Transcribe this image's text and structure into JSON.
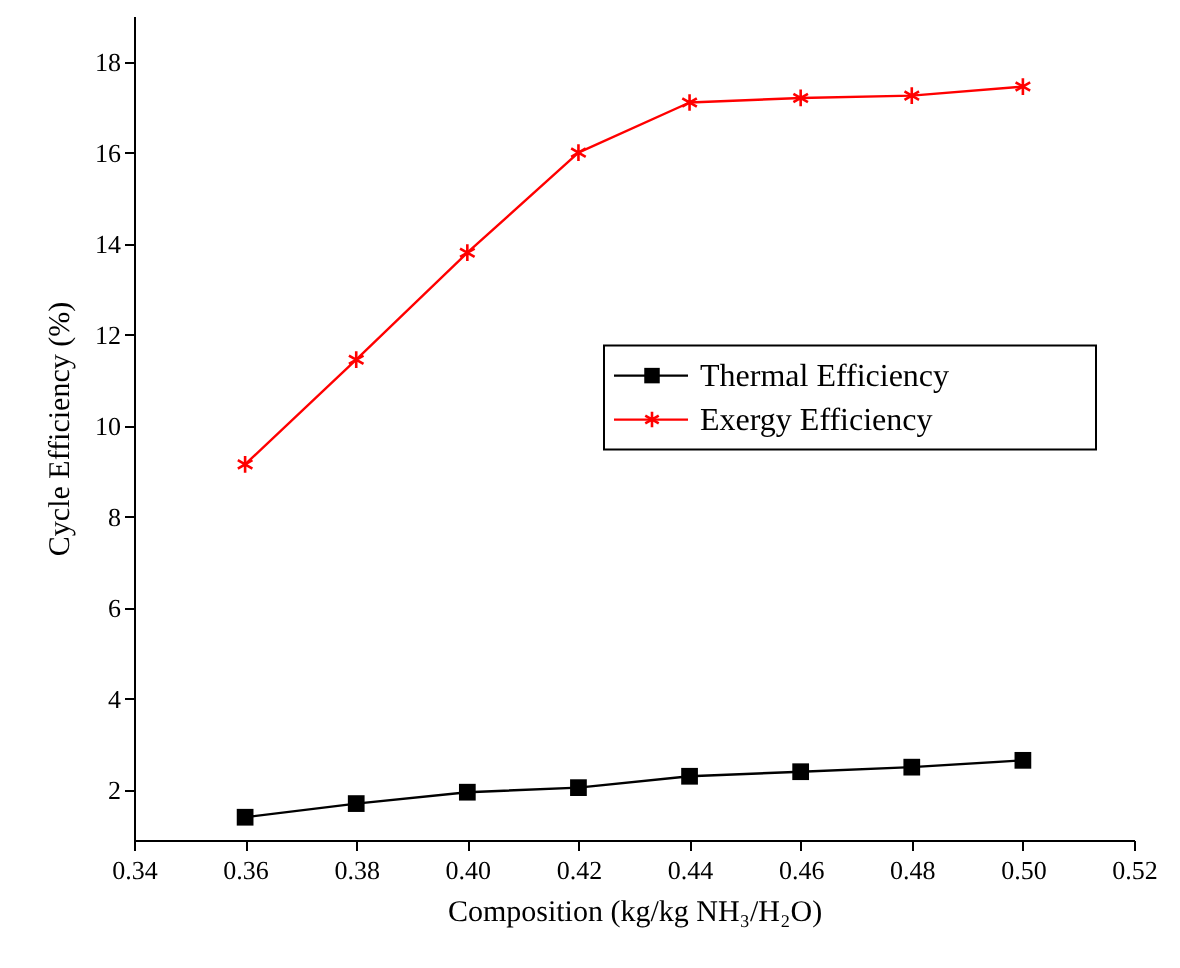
{
  "chart_data": {
    "type": "line",
    "xlabel": "Composition (kg/kg NH₃/H₂O)",
    "ylabel": "Cycle Efficiency (%)",
    "x": [
      0.36,
      0.38,
      0.4,
      0.42,
      0.44,
      0.46,
      0.48,
      0.5
    ],
    "series": [
      {
        "name": "Thermal Efficiency",
        "color": "#000000",
        "marker": "square",
        "values": [
          1.4,
          1.7,
          1.95,
          2.05,
          2.3,
          2.4,
          2.5,
          2.65
        ]
      },
      {
        "name": "Exergy Efficiency",
        "color": "#ff0000",
        "marker": "cross",
        "values": [
          9.15,
          11.45,
          13.8,
          16.0,
          17.1,
          17.2,
          17.25,
          17.45
        ]
      }
    ],
    "xlim": [
      0.34,
      0.52
    ],
    "xticks": [
      {
        "value": 0.34,
        "label": "0.34"
      },
      {
        "value": 0.36,
        "label": "0.36"
      },
      {
        "value": 0.38,
        "label": "0.38"
      },
      {
        "value": 0.4,
        "label": "0.40"
      },
      {
        "value": 0.42,
        "label": "0.42"
      },
      {
        "value": 0.44,
        "label": "0.44"
      },
      {
        "value": 0.46,
        "label": "0.46"
      },
      {
        "value": 0.48,
        "label": "0.48"
      },
      {
        "value": 0.5,
        "label": "0.50"
      },
      {
        "value": 0.52,
        "label": "0.52"
      }
    ],
    "ylim": [
      0.9,
      19
    ],
    "yticks": [
      2,
      4,
      6,
      8,
      10,
      12,
      14,
      16,
      18
    ],
    "grid": false,
    "legend": "right",
    "line_style": "solid"
  }
}
